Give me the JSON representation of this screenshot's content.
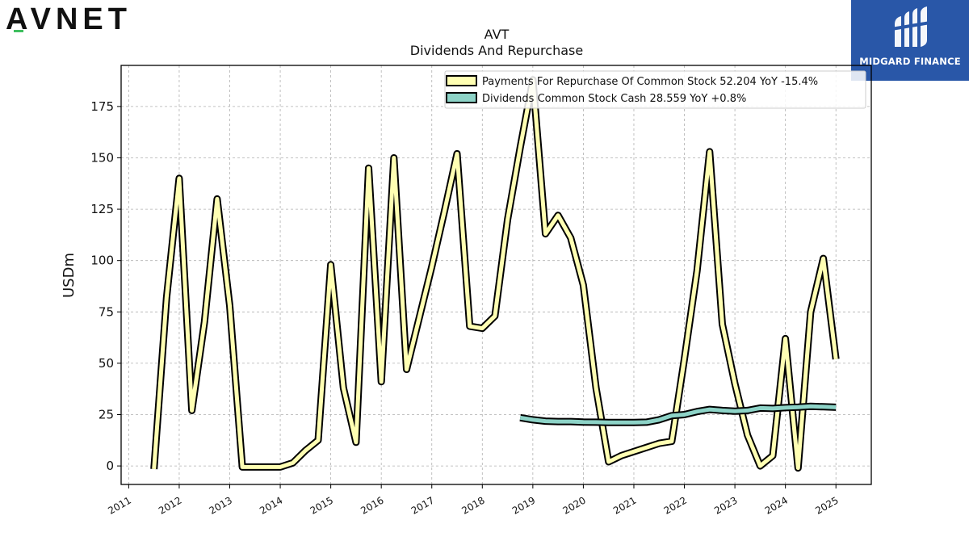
{
  "logos": {
    "left_text": "AVNET",
    "right_text": "MIDGARD FINANCE",
    "right_bg": "#2957a8",
    "avnet_accent": "#3fbf5f"
  },
  "chart_data": {
    "type": "line",
    "title": "AVT",
    "subtitle": "Dividends And Repurchase",
    "ylabel": "USDm",
    "xlabel": "",
    "ylim": [
      -9,
      195
    ],
    "xlim": [
      2010.85,
      2025.7
    ],
    "yticks": [
      0,
      25,
      50,
      75,
      100,
      125,
      150,
      175
    ],
    "xticks": [
      2011,
      2012,
      2013,
      2014,
      2015,
      2016,
      2017,
      2018,
      2019,
      2020,
      2021,
      2022,
      2023,
      2024,
      2025
    ],
    "grid": true,
    "legend_position": "top-right",
    "series": [
      {
        "name": "Payments For Repurchase Of Common Stock",
        "legend_label": "Payments For Repurchase Of Common Stock  52.204 YoY -15.4%",
        "color": "#ffffb3",
        "x": [
          2011.5,
          2011.75,
          2012.0,
          2012.25,
          2012.5,
          2012.75,
          2013.0,
          2013.25,
          2013.5,
          2013.75,
          2014.0,
          2014.25,
          2014.5,
          2014.75,
          2015.0,
          2015.25,
          2015.5,
          2015.75,
          2016.0,
          2016.25,
          2016.5,
          2016.75,
          2017.0,
          2017.25,
          2017.5,
          2017.75,
          2018.0,
          2018.25,
          2018.5,
          2018.75,
          2019.0,
          2019.25,
          2019.5,
          2019.75,
          2020.0,
          2020.25,
          2020.5,
          2020.75,
          2021.0,
          2021.25,
          2021.5,
          2021.75,
          2022.0,
          2022.25,
          2022.5,
          2022.75,
          2023.0,
          2023.25,
          2023.5,
          2023.75,
          2024.0,
          2024.25,
          2024.5,
          2024.75,
          2025.0
        ],
        "values": [
          -1.5,
          82,
          140,
          27,
          70,
          130,
          78,
          -0.5,
          -0.5,
          -0.5,
          -0.5,
          1.5,
          7.5,
          12.5,
          98,
          38,
          11.5,
          145,
          41,
          150,
          47,
          72,
          97,
          124,
          152,
          68,
          67,
          73,
          120,
          155,
          188,
          113,
          122,
          111,
          88,
          38,
          2,
          5,
          7,
          9,
          11,
          12,
          52,
          95,
          153,
          69,
          40,
          15,
          0,
          5,
          62,
          -1,
          75,
          101,
          52
        ]
      },
      {
        "name": "Dividends Common Stock Cash",
        "legend_label": "Dividends Common Stock Cash  28.559 YoY +0.8%",
        "color": "#8dd3c7",
        "x": [
          2018.75,
          2019.0,
          2019.25,
          2019.5,
          2019.75,
          2020.0,
          2020.25,
          2020.5,
          2020.75,
          2021.0,
          2021.25,
          2021.5,
          2021.75,
          2022.0,
          2022.25,
          2022.5,
          2022.75,
          2023.0,
          2023.25,
          2023.5,
          2023.75,
          2024.0,
          2024.25,
          2024.5,
          2024.75,
          2025.0
        ],
        "values": [
          23.5,
          22.5,
          21.8,
          21.6,
          21.6,
          21.4,
          21.3,
          21.2,
          21.2,
          21.2,
          21.3,
          22.5,
          24.5,
          25.0,
          26.5,
          27.5,
          27.0,
          26.7,
          27.0,
          28.2,
          28.0,
          28.4,
          28.6,
          29.0,
          28.8,
          28.56
        ]
      }
    ]
  }
}
